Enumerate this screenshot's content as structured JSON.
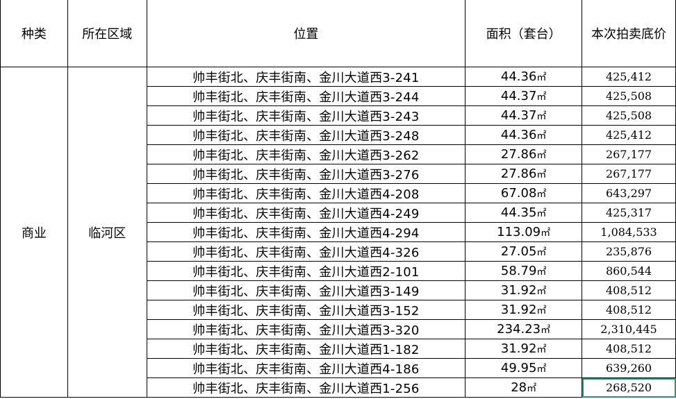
{
  "headers": [
    "种类",
    "所在区域",
    "位置",
    "面积（套台）",
    "本次拍卖底价"
  ],
  "category": "商业",
  "district": "临河区",
  "area_unit": "㎡",
  "selection_color": "#1e9e6e",
  "rows": [
    {
      "location": "帅丰街北、庆丰街南、金川大道西3-241",
      "area": "44.36",
      "price": "425,412"
    },
    {
      "location": "帅丰街北、庆丰街南、金川大道西3-244",
      "area": "44.37",
      "price": "425,508"
    },
    {
      "location": "帅丰街北、庆丰街南、金川大道西3-243",
      "area": "44.37",
      "price": "425,508"
    },
    {
      "location": "帅丰街北、庆丰街南、金川大道西3-248",
      "area": "44.36",
      "price": "425,412"
    },
    {
      "location": "帅丰街北、庆丰街南、金川大道西3-262",
      "area": "27.86",
      "price": "267,177"
    },
    {
      "location": "帅丰街北、庆丰街南、金川大道西3-276",
      "area": "27.86",
      "price": "267,177"
    },
    {
      "location": "帅丰街北、庆丰街南、金川大道西4-208",
      "area": "67.08",
      "price": "643,297"
    },
    {
      "location": "帅丰街北、庆丰街南、金川大道西4-249",
      "area": "44.35",
      "price": "425,317"
    },
    {
      "location": "帅丰街北、庆丰街南、金川大道西4-294",
      "area": "113.09",
      "price": "1,084,533"
    },
    {
      "location": "帅丰街北、庆丰街南、金川大道西4-326",
      "area": "27.05",
      "price": "235,876"
    },
    {
      "location": "帅丰街北、庆丰街南、金川大道西2-101",
      "area": "58.79",
      "price": "860,544"
    },
    {
      "location": "帅丰街北、庆丰街南、金川大道西3-149",
      "area": "31.92",
      "price": "408,512"
    },
    {
      "location": "帅丰街北、庆丰街南、金川大道西3-152",
      "area": "31.92",
      "price": "408,512"
    },
    {
      "location": "帅丰街北、庆丰街南、金川大道西3-320",
      "area": "234.23",
      "price": "2,310,445"
    },
    {
      "location": "帅丰街北、庆丰街南、金川大道西1-182",
      "area": "31.92",
      "price": "408,512"
    },
    {
      "location": "帅丰街北、庆丰街南、金川大道西4-186",
      "area": "49.95",
      "price": "639,260"
    },
    {
      "location": "帅丰街北、庆丰街南、金川大道西1-256",
      "area": "28",
      "price": "268,520"
    }
  ]
}
